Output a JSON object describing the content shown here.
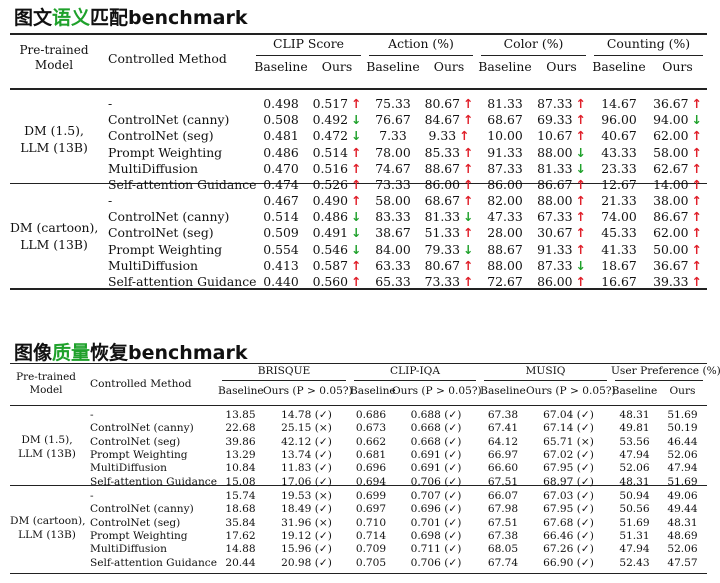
{
  "section1": {
    "title_pre": "图文",
    "title_hl": "语义",
    "title_post": "匹配benchmark",
    "header": {
      "pretrained": "Pre-trained\nModel",
      "method": "Controlled Method",
      "groups": [
        "CLIP Score",
        "Action (%)",
        "Color (%)",
        "Counting (%)"
      ],
      "sub": [
        "Baseline",
        "Ours"
      ]
    },
    "blocks": [
      {
        "model": "DM (1.5),\nLLM (13B)",
        "rows": [
          {
            "method": "-",
            "cells": [
              [
                "0.498"
              ],
              [
                "0.517",
                "up"
              ],
              [
                "75.33"
              ],
              [
                "80.67",
                "up"
              ],
              [
                "81.33"
              ],
              [
                "87.33",
                "up"
              ],
              [
                "14.67"
              ],
              [
                "36.67",
                "up"
              ]
            ]
          },
          {
            "method": "ControlNet (canny)",
            "cells": [
              [
                "0.508"
              ],
              [
                "0.492",
                "dn"
              ],
              [
                "76.67"
              ],
              [
                "84.67",
                "up"
              ],
              [
                "68.67"
              ],
              [
                "69.33",
                "up"
              ],
              [
                "96.00"
              ],
              [
                "94.00",
                "dn"
              ]
            ]
          },
          {
            "method": "ControlNet (seg)",
            "cells": [
              [
                "0.481"
              ],
              [
                "0.472",
                "dn"
              ],
              [
                "7.33"
              ],
              [
                "9.33",
                "up"
              ],
              [
                "10.00"
              ],
              [
                "10.67",
                "up"
              ],
              [
                "40.67"
              ],
              [
                "62.00",
                "up"
              ]
            ]
          },
          {
            "method": "Prompt Weighting",
            "cells": [
              [
                "0.486"
              ],
              [
                "0.514",
                "up"
              ],
              [
                "78.00"
              ],
              [
                "85.33",
                "up"
              ],
              [
                "91.33"
              ],
              [
                "88.00",
                "dn"
              ],
              [
                "43.33"
              ],
              [
                "58.00",
                "up"
              ]
            ]
          },
          {
            "method": "MultiDiffusion",
            "cells": [
              [
                "0.470"
              ],
              [
                "0.516",
                "up"
              ],
              [
                "74.67"
              ],
              [
                "88.67",
                "up"
              ],
              [
                "87.33"
              ],
              [
                "81.33",
                "dn"
              ],
              [
                "23.33"
              ],
              [
                "62.67",
                "up"
              ]
            ]
          },
          {
            "method": "Self-attention Guidance",
            "cells": [
              [
                "0.474"
              ],
              [
                "0.526",
                "up"
              ],
              [
                "73.33"
              ],
              [
                "86.00",
                "up"
              ],
              [
                "86.00"
              ],
              [
                "86.67",
                "up"
              ],
              [
                "12.67"
              ],
              [
                "14.00",
                "up"
              ]
            ]
          }
        ]
      },
      {
        "model": "DM (cartoon),\nLLM (13B)",
        "rows": [
          {
            "method": "-",
            "cells": [
              [
                "0.467"
              ],
              [
                "0.490",
                "up"
              ],
              [
                "58.00"
              ],
              [
                "68.67",
                "up"
              ],
              [
                "82.00"
              ],
              [
                "88.00",
                "up"
              ],
              [
                "21.33"
              ],
              [
                "38.00",
                "up"
              ]
            ]
          },
          {
            "method": "ControlNet (canny)",
            "cells": [
              [
                "0.514"
              ],
              [
                "0.486",
                "dn"
              ],
              [
                "83.33"
              ],
              [
                "81.33",
                "dn"
              ],
              [
                "47.33"
              ],
              [
                "67.33",
                "up"
              ],
              [
                "74.00"
              ],
              [
                "86.67",
                "up"
              ]
            ]
          },
          {
            "method": "ControlNet (seg)",
            "cells": [
              [
                "0.509"
              ],
              [
                "0.491",
                "dn"
              ],
              [
                "38.67"
              ],
              [
                "51.33",
                "up"
              ],
              [
                "28.00"
              ],
              [
                "30.67",
                "up"
              ],
              [
                "45.33"
              ],
              [
                "62.00",
                "up"
              ]
            ]
          },
          {
            "method": "Prompt Weighting",
            "cells": [
              [
                "0.554"
              ],
              [
                "0.546",
                "dn"
              ],
              [
                "84.00"
              ],
              [
                "79.33",
                "dn"
              ],
              [
                "88.67"
              ],
              [
                "91.33",
                "up"
              ],
              [
                "41.33"
              ],
              [
                "50.00",
                "up"
              ]
            ]
          },
          {
            "method": "MultiDiffusion",
            "cells": [
              [
                "0.413"
              ],
              [
                "0.587",
                "up"
              ],
              [
                "63.33"
              ],
              [
                "80.67",
                "up"
              ],
              [
                "88.00"
              ],
              [
                "87.33",
                "dn"
              ],
              [
                "18.67"
              ],
              [
                "36.67",
                "up"
              ]
            ]
          },
          {
            "method": "Self-attention Guidance",
            "cells": [
              [
                "0.440"
              ],
              [
                "0.560",
                "up"
              ],
              [
                "65.33"
              ],
              [
                "73.33",
                "up"
              ],
              [
                "72.67"
              ],
              [
                "86.00",
                "up"
              ],
              [
                "16.67"
              ],
              [
                "39.33",
                "up"
              ]
            ]
          }
        ]
      }
    ]
  },
  "section2": {
    "title_pre": "图像",
    "title_hl": "质量",
    "title_post": "恢复benchmark",
    "header": {
      "pretrained": "Pre-trained\nModel",
      "method": "Controlled Method",
      "groups": [
        "BRISQUE",
        "CLIP-IQA",
        "MUSIQ",
        "User Preference (%)"
      ],
      "sub": [
        "Baseline",
        "Ours (P > 0.05?)",
        "Baseline",
        "Ours (P > 0.05?)",
        "Baseline",
        "Ours (P > 0.05?)",
        "Baseline",
        "Ours"
      ]
    },
    "blocks": [
      {
        "model": "DM (1.5),\nLLM (13B)",
        "rows": [
          {
            "method": "-",
            "cells": [
              "13.85",
              "14.78 (✓)",
              "0.686",
              "0.688 (✓)",
              "67.38",
              "67.04 (✓)",
              "48.31",
              "51.69"
            ]
          },
          {
            "method": "ControlNet (canny)",
            "cells": [
              "22.68",
              "25.15 (×)",
              "0.673",
              "0.668 (✓)",
              "67.41",
              "67.14 (✓)",
              "49.81",
              "50.19"
            ]
          },
          {
            "method": "ControlNet (seg)",
            "cells": [
              "39.86",
              "42.12 (✓)",
              "0.662",
              "0.668 (✓)",
              "64.12",
              "65.71 (×)",
              "53.56",
              "46.44"
            ]
          },
          {
            "method": "Prompt Weighting",
            "cells": [
              "13.29",
              "13.74 (✓)",
              "0.681",
              "0.691 (✓)",
              "66.97",
              "67.02 (✓)",
              "47.94",
              "52.06"
            ]
          },
          {
            "method": "MultiDiffusion",
            "cells": [
              "10.84",
              "11.83 (✓)",
              "0.696",
              "0.691 (✓)",
              "66.60",
              "67.95 (✓)",
              "52.06",
              "47.94"
            ]
          },
          {
            "method": "Self-attention Guidance",
            "cells": [
              "15.08",
              "17.06 (✓)",
              "0.694",
              "0.706 (✓)",
              "67.51",
              "68.97 (✓)",
              "48.31",
              "51.69"
            ]
          }
        ]
      },
      {
        "model": "DM (cartoon),\nLLM (13B)",
        "rows": [
          {
            "method": "-",
            "cells": [
              "15.74",
              "19.53 (×)",
              "0.699",
              "0.707 (✓)",
              "66.07",
              "67.03 (✓)",
              "50.94",
              "49.06"
            ]
          },
          {
            "method": "ControlNet (canny)",
            "cells": [
              "18.68",
              "18.49 (✓)",
              "0.697",
              "0.696 (✓)",
              "67.98",
              "67.95 (✓)",
              "50.56",
              "49.44"
            ]
          },
          {
            "method": "ControlNet (seg)",
            "cells": [
              "35.84",
              "31.96 (×)",
              "0.710",
              "0.701 (✓)",
              "67.51",
              "67.68 (✓)",
              "51.69",
              "48.31"
            ]
          },
          {
            "method": "Prompt Weighting",
            "cells": [
              "17.62",
              "19.12 (✓)",
              "0.714",
              "0.698 (✓)",
              "67.38",
              "66.46 (✓)",
              "51.31",
              "48.69"
            ]
          },
          {
            "method": "MultiDiffusion",
            "cells": [
              "14.88",
              "15.96 (✓)",
              "0.709",
              "0.711 (✓)",
              "68.05",
              "67.26 (✓)",
              "47.94",
              "52.06"
            ]
          },
          {
            "method": "Self-attention Guidance",
            "cells": [
              "20.44",
              "20.98 (✓)",
              "0.705",
              "0.706 (✓)",
              "67.74",
              "66.90 (✓)",
              "52.43",
              "47.57"
            ]
          }
        ]
      }
    ]
  }
}
